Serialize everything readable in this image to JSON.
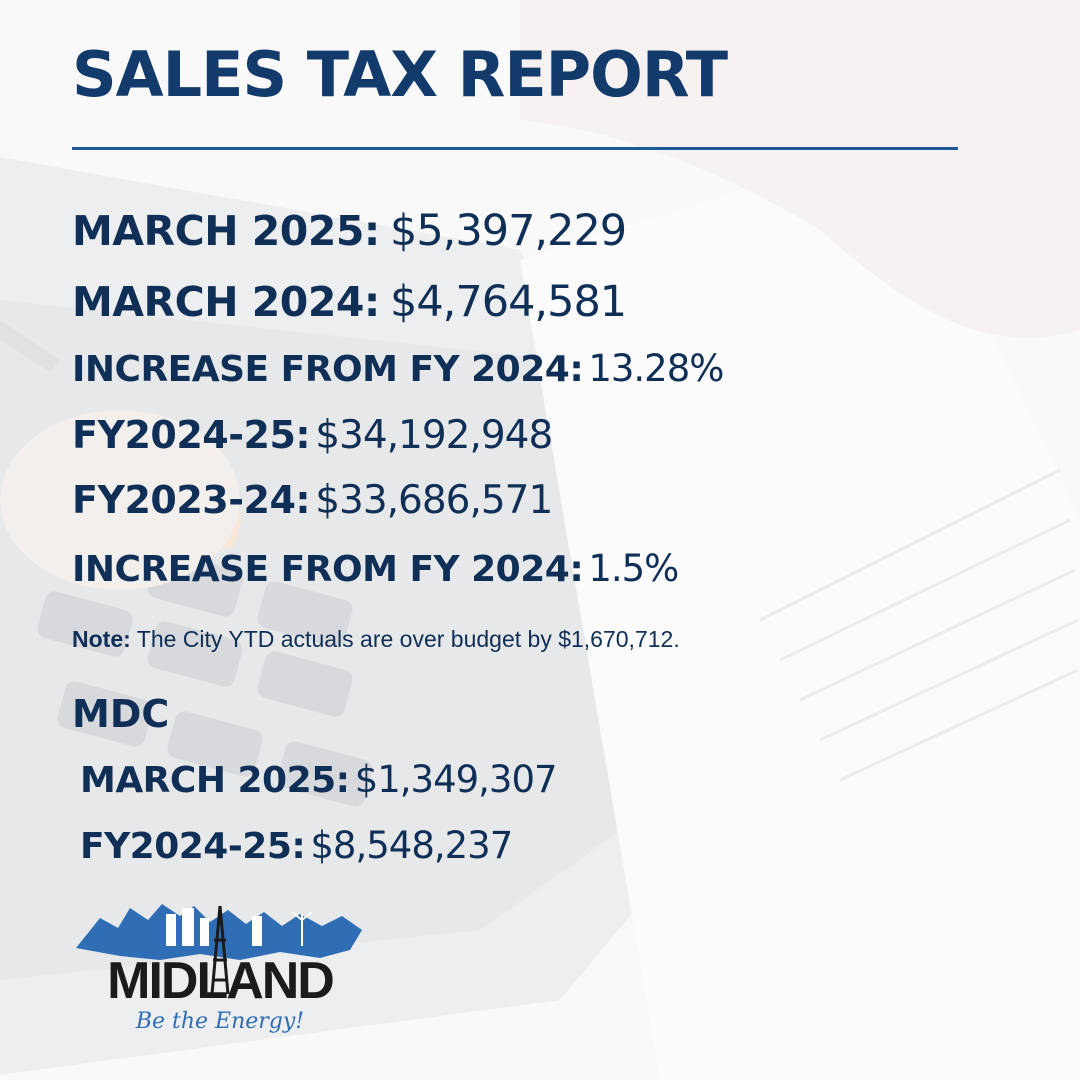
{
  "header": {
    "title": "SALES TAX REPORT"
  },
  "report": {
    "rows": [
      {
        "label": "MARCH 2025:",
        "value": "$5,397,229"
      },
      {
        "label": "MARCH 2024:",
        "value": "$4,764,581"
      },
      {
        "label": "INCREASE FROM FY 2024:",
        "value": "13.28%"
      },
      {
        "label": "FY2024-25:",
        "value": "$34,192,948"
      },
      {
        "label": "FY2023-24:",
        "value": "$33,686,571"
      },
      {
        "label": "INCREASE FROM FY 2024:",
        "value": "1.5%"
      }
    ],
    "note": {
      "label": "Note:",
      "text": "The City YTD actuals are over budget by $1,670,712."
    }
  },
  "mdc": {
    "heading": "MDC",
    "rows": [
      {
        "label": "MARCH 2025:",
        "value": "$1,349,307"
      },
      {
        "label": "FY2024-25:",
        "value": "$8,548,237"
      }
    ]
  },
  "logo": {
    "name": "MIDLAND",
    "tagline": "Be the Energy!"
  },
  "colors": {
    "navy": "#0f2f57",
    "title": "#123a6b",
    "accent": "#1f5a96",
    "logo_blue": "#2f6db5"
  }
}
